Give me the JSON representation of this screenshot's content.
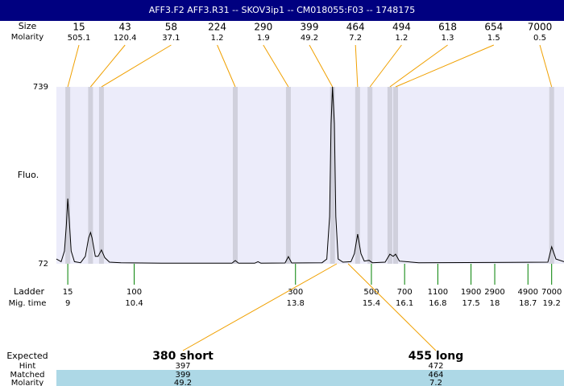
{
  "chart_data": {
    "type": "electropherogram",
    "title": "AFF3.F2  AFF3.R31 -- SKOV3ip1 -- CM018055:F03 -- 1748175",
    "y_label": "Fluo.",
    "ylim": [
      72,
      739
    ],
    "yticks": [
      72,
      739
    ],
    "xlim": [
      8.76,
      19.46
    ],
    "peak_row_labels": [
      "Size",
      "Molarity"
    ],
    "peaks": {
      "sizes": [
        15,
        43,
        58,
        224,
        290,
        399,
        464,
        494,
        618,
        654,
        7000
      ],
      "molarity": [
        505.1,
        120.4,
        37.1,
        1.2,
        1.9,
        49.2,
        7.2,
        1.2,
        1.3,
        1.5,
        0.5
      ],
      "times": [
        9.0,
        9.48,
        9.71,
        12.53,
        13.65,
        14.58,
        15.11,
        15.37,
        15.79,
        15.91,
        19.2
      ]
    },
    "trace": {
      "color": "#000000",
      "x": [
        8.76,
        8.86,
        8.93,
        8.97,
        9.0,
        9.03,
        9.07,
        9.14,
        9.27,
        9.37,
        9.44,
        9.48,
        9.51,
        9.58,
        9.64,
        9.71,
        9.78,
        9.88,
        10.12,
        10.97,
        12.46,
        12.53,
        12.6,
        12.94,
        13.01,
        13.07,
        13.58,
        13.65,
        13.72,
        14.36,
        14.46,
        14.52,
        14.55,
        14.58,
        14.62,
        14.65,
        14.7,
        14.8,
        14.97,
        15.04,
        15.11,
        15.18,
        15.25,
        15.35,
        15.42,
        15.69,
        15.79,
        15.86,
        15.91,
        15.99,
        16.4,
        19.12,
        19.2,
        19.29,
        19.46
      ],
      "values": [
        90,
        80,
        120,
        220,
        318,
        240,
        120,
        80,
        76,
        100,
        170,
        190,
        170,
        100,
        100,
        124,
        95,
        78,
        76,
        74,
        74,
        84,
        74,
        74,
        80,
        74,
        75,
        99,
        75,
        76,
        90,
        250,
        600,
        739,
        600,
        250,
        90,
        78,
        80,
        110,
        184,
        110,
        82,
        85,
        76,
        78,
        108,
        100,
        108,
        82,
        76,
        78,
        136,
        90,
        80
      ]
    },
    "ladder": {
      "label": "Ladder",
      "time_label": "Mig. time",
      "sizes": [
        15,
        100,
        300,
        500,
        700,
        1100,
        1900,
        2900,
        4900,
        7000
      ],
      "times": [
        9,
        10.4,
        13.8,
        15.4,
        16.1,
        16.8,
        17.5,
        18,
        18.7,
        19.2
      ]
    },
    "expected": {
      "row_labels": [
        "Expected",
        "Hint",
        "Matched",
        "Molarity"
      ],
      "labels": [
        "380 short",
        "455 long"
      ],
      "hint": [
        397,
        472
      ],
      "matched": [
        399,
        464
      ],
      "molarity": [
        49.2,
        7.2
      ],
      "times": [
        14.67,
        14.91
      ]
    }
  }
}
